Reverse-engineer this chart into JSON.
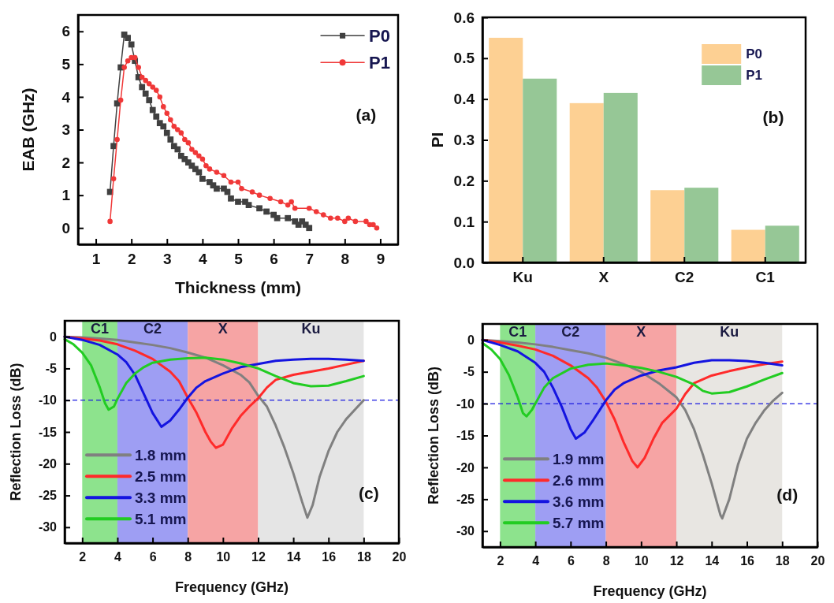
{
  "chart_data": [
    {
      "type": "line",
      "xlabel": "Thickness (mm)",
      "ylabel": "EAB (GHz)",
      "xlim": [
        0.5,
        9.5
      ],
      "ylim": [
        -0.5,
        6.5
      ],
      "xticks": [
        1,
        2,
        3,
        4,
        5,
        6,
        7,
        8,
        9
      ],
      "yticks": [
        0,
        1,
        2,
        3,
        4,
        5,
        6
      ],
      "legend": "top right",
      "annotations": [
        "(a)"
      ],
      "series": [
        {
          "name": "P0",
          "color": "#404040",
          "marker": "square",
          "x": [
            1.4,
            1.5,
            1.6,
            1.7,
            1.8,
            1.9,
            2.0,
            2.1,
            2.2,
            2.3,
            2.4,
            2.5,
            2.6,
            2.7,
            2.8,
            2.9,
            3.0,
            3.1,
            3.2,
            3.3,
            3.4,
            3.5,
            3.6,
            3.7,
            3.8,
            3.9,
            4.0,
            4.2,
            4.3,
            4.4,
            4.6,
            4.7,
            4.8,
            5.0,
            5.2,
            5.3,
            5.6,
            5.8,
            6.0,
            6.1,
            6.4,
            6.6,
            6.7,
            6.8,
            6.9,
            7.0
          ],
          "values": [
            1.1,
            2.5,
            3.8,
            4.9,
            5.9,
            5.8,
            5.6,
            5.1,
            4.6,
            4.3,
            4.1,
            3.9,
            3.6,
            3.4,
            3.2,
            3.1,
            2.9,
            2.7,
            2.5,
            2.4,
            2.2,
            2.1,
            2.0,
            1.9,
            1.8,
            1.7,
            1.5,
            1.4,
            1.3,
            1.2,
            1.2,
            1.1,
            0.9,
            0.8,
            0.8,
            0.7,
            0.6,
            0.5,
            0.4,
            0.3,
            0.3,
            0.2,
            0.1,
            0.2,
            0.1,
            0.0
          ]
        },
        {
          "name": "P1",
          "color": "#f03838",
          "marker": "circle",
          "x": [
            1.4,
            1.5,
            1.6,
            1.7,
            1.8,
            1.9,
            2.0,
            2.1,
            2.2,
            2.3,
            2.4,
            2.5,
            2.6,
            2.7,
            2.8,
            2.9,
            3.0,
            3.1,
            3.2,
            3.3,
            3.4,
            3.5,
            3.6,
            3.7,
            3.8,
            3.9,
            4.0,
            4.1,
            4.2,
            4.4,
            4.6,
            4.8,
            5.0,
            5.1,
            5.4,
            5.6,
            5.9,
            6.2,
            6.4,
            6.5,
            6.6,
            7.0,
            7.2,
            7.4,
            7.6,
            7.8,
            8.0,
            8.1,
            8.3,
            8.6,
            8.7,
            8.8,
            8.9
          ],
          "values": [
            0.2,
            1.5,
            2.7,
            3.9,
            4.9,
            5.1,
            5.2,
            5.2,
            4.9,
            4.6,
            4.5,
            4.4,
            4.3,
            4.2,
            4.0,
            3.7,
            3.5,
            3.3,
            3.1,
            3.0,
            2.9,
            2.7,
            2.6,
            2.4,
            2.3,
            2.2,
            2.1,
            1.9,
            1.8,
            1.7,
            1.6,
            1.4,
            1.4,
            1.2,
            1.1,
            1.0,
            0.9,
            0.8,
            0.7,
            0.8,
            0.6,
            0.6,
            0.5,
            0.4,
            0.3,
            0.3,
            0.2,
            0.3,
            0.2,
            0.2,
            0.1,
            0.1,
            0.0
          ]
        }
      ]
    },
    {
      "type": "bar",
      "ylabel": "PI",
      "categories": [
        "Ku",
        "X",
        "C2",
        "C1"
      ],
      "ylim": [
        0,
        0.6
      ],
      "yticks": [
        {
          "value": 0,
          "label": "0.0"
        },
        {
          "value": 0.1,
          "label": "0.1"
        },
        {
          "value": 0.2,
          "label": "0.2"
        },
        {
          "value": 0.3,
          "label": "0.3"
        },
        {
          "value": 0.4,
          "label": "0.4"
        },
        {
          "value": 0.5,
          "label": "0.5"
        },
        {
          "value": 0.6,
          "label": "0.6"
        }
      ],
      "legend": "top right",
      "annotations": [
        "(b)"
      ],
      "series": [
        {
          "name": "P0",
          "color": "#fdd093",
          "values": [
            0.55,
            0.39,
            0.177,
            0.08
          ]
        },
        {
          "name": "P1",
          "color": "#96c796",
          "values": [
            0.45,
            0.415,
            0.183,
            0.09
          ]
        }
      ]
    },
    {
      "type": "line",
      "xlabel": "Frequency (GHz)",
      "ylabel": "Reflection Loss (dB)",
      "xlim": [
        1,
        20
      ],
      "ylim": [
        -32.5,
        2.5
      ],
      "xticks": [
        2,
        4,
        6,
        8,
        10,
        12,
        14,
        16,
        18,
        20
      ],
      "yticks": [
        0,
        -5,
        -10,
        -15,
        -20,
        -25,
        -30
      ],
      "legend": "bottom left",
      "annotations": [
        "(c)"
      ],
      "bands": [
        {
          "axis": "x",
          "from": 2,
          "to": 4,
          "label": "C1",
          "color": "#8de38d"
        },
        {
          "axis": "x",
          "from": 4,
          "to": 8,
          "label": "C2",
          "color": "#9e9ef3"
        },
        {
          "axis": "x",
          "from": 8,
          "to": 12,
          "label": "X",
          "color": "#f6a4a4"
        },
        {
          "axis": "x",
          "from": 12,
          "to": 18,
          "label": "Ku",
          "color": "#e5e5e5"
        }
      ],
      "ref_lines": [
        {
          "axis": "y",
          "value": -10,
          "color": "#1a1ae0",
          "line_style": "dashed"
        }
      ],
      "series": [
        {
          "name": "1.8 mm",
          "color": "#808080",
          "x": [
            1,
            2,
            3,
            4,
            5,
            6,
            7,
            8,
            9,
            10,
            11,
            11.5,
            12,
            12.5,
            13,
            13.5,
            14,
            14.5,
            14.8,
            15.1,
            15.5,
            16,
            16.5,
            17,
            17.5,
            18
          ],
          "values": [
            0,
            -0.1,
            -0.3,
            -0.5,
            -0.9,
            -1.3,
            -1.8,
            -2.5,
            -3.3,
            -4.5,
            -6.0,
            -7.2,
            -9.3,
            -11,
            -14,
            -17.5,
            -21.5,
            -26,
            -28.5,
            -26.5,
            -22,
            -18,
            -15,
            -13,
            -11.5,
            -10
          ]
        },
        {
          "name": "2.5 mm",
          "color": "#ff2a2a",
          "x": [
            1,
            2,
            3,
            4,
            5,
            6,
            7,
            7.5,
            8,
            8.5,
            9,
            9.3,
            9.6,
            10,
            10.5,
            11,
            11.5,
            12,
            12.5,
            13,
            14,
            15,
            16,
            17,
            18
          ],
          "values": [
            0,
            -0.3,
            -0.6,
            -1.2,
            -2.2,
            -3.5,
            -5.5,
            -7,
            -9.6,
            -12,
            -15,
            -16.5,
            -17.5,
            -17,
            -14.5,
            -12.5,
            -11,
            -9.7,
            -8,
            -6.8,
            -6.0,
            -5.5,
            -5,
            -4.4,
            -3.8
          ]
        },
        {
          "name": "3.3 mm",
          "color": "#1414e0",
          "x": [
            1,
            2,
            3,
            4,
            4.5,
            5,
            5.5,
            6,
            6.5,
            7,
            7.5,
            8,
            8.5,
            9,
            10,
            11,
            12,
            13,
            14,
            15,
            16,
            17,
            18
          ],
          "values": [
            0,
            -0.5,
            -1.3,
            -2.8,
            -4,
            -6,
            -9,
            -12,
            -14.2,
            -13.2,
            -11.5,
            -9.6,
            -8,
            -7,
            -5.8,
            -4.8,
            -4.3,
            -3.8,
            -3.6,
            -3.5,
            -3.5,
            -3.6,
            -3.8
          ]
        },
        {
          "name": "5.1 mm",
          "color": "#22cc22",
          "x": [
            1,
            1.5,
            2,
            2.5,
            3,
            3.3,
            3.5,
            3.8,
            4,
            4.5,
            5,
            5.5,
            6,
            7,
            8,
            9,
            10,
            11,
            12,
            13,
            14,
            15,
            16,
            17,
            18
          ],
          "values": [
            -0.4,
            -1.2,
            -2.5,
            -4.5,
            -8,
            -10.5,
            -11.5,
            -11,
            -9.8,
            -7.3,
            -5.8,
            -4.8,
            -4.1,
            -3.6,
            -3.4,
            -3.3,
            -3.6,
            -4.2,
            -5,
            -6.2,
            -7.3,
            -7.8,
            -7.7,
            -7.0,
            -6.2
          ]
        }
      ]
    },
    {
      "type": "line",
      "xlabel": "Frequency (GHz)",
      "ylabel": "Reflection Loss (dB)",
      "xlim": [
        1,
        20
      ],
      "ylim": [
        -32.5,
        2.5
      ],
      "xticks": [
        2,
        4,
        6,
        8,
        10,
        12,
        14,
        16,
        18,
        20
      ],
      "yticks": [
        0,
        -5,
        -10,
        -15,
        -20,
        -25,
        -30
      ],
      "legend": "bottom left",
      "annotations": [
        "(d)"
      ],
      "bands": [
        {
          "axis": "x",
          "from": 2,
          "to": 4,
          "label": "C1",
          "color": "#8de38d"
        },
        {
          "axis": "x",
          "from": 4,
          "to": 8,
          "label": "C2",
          "color": "#9e9ef3"
        },
        {
          "axis": "x",
          "from": 8,
          "to": 12,
          "label": "X",
          "color": "#f6a4a4"
        },
        {
          "axis": "x",
          "from": 12,
          "to": 18,
          "label": "Ku",
          "color": "#e8e6e2"
        }
      ],
      "ref_lines": [
        {
          "axis": "y",
          "value": -10,
          "color": "#1a1ae0",
          "line_style": "dashed"
        }
      ],
      "series": [
        {
          "name": "1.9 mm",
          "color": "#808080",
          "x": [
            1,
            2,
            3,
            4,
            5,
            6,
            7,
            8,
            9,
            10,
            11,
            12,
            12.5,
            13,
            13.5,
            14,
            14.5,
            14.6,
            15,
            15.5,
            16,
            16.5,
            17,
            17.5,
            18
          ],
          "values": [
            0,
            -0.2,
            -0.4,
            -0.7,
            -1.1,
            -1.6,
            -2.1,
            -2.8,
            -3.8,
            -5.0,
            -6.8,
            -9.0,
            -11,
            -14,
            -18,
            -22.5,
            -27.5,
            -28,
            -25,
            -19.5,
            -15.5,
            -13,
            -11,
            -9.5,
            -8.3
          ]
        },
        {
          "name": "2.6 mm",
          "color": "#ff2a2a",
          "x": [
            1,
            2,
            3,
            4,
            5,
            6,
            7,
            7.5,
            8,
            8.5,
            9,
            9.5,
            9.8,
            10.2,
            10.7,
            11.2,
            12,
            12.5,
            13,
            14,
            15,
            16,
            17,
            18
          ],
          "values": [
            0,
            -0.4,
            -0.9,
            -1.5,
            -2.5,
            -4,
            -6,
            -7.5,
            -9.7,
            -12.5,
            -16,
            -19,
            -20,
            -18.5,
            -15.5,
            -13,
            -10.8,
            -8.5,
            -6.8,
            -5.6,
            -4.9,
            -4.3,
            -3.8,
            -3.4
          ]
        },
        {
          "name": "3.6 mm",
          "color": "#1414e0",
          "x": [
            1,
            2,
            3,
            4,
            4.5,
            5,
            5.5,
            6,
            6.3,
            6.8,
            7.3,
            8,
            8.5,
            9,
            10,
            11,
            12,
            13,
            14,
            15,
            16,
            17,
            18
          ],
          "values": [
            0,
            -0.8,
            -1.8,
            -3.6,
            -5,
            -7.5,
            -10.5,
            -14,
            -15.5,
            -14.5,
            -12.5,
            -9.5,
            -7.8,
            -6.8,
            -5.6,
            -4.8,
            -4.3,
            -3.6,
            -3.2,
            -3.2,
            -3.3,
            -3.6,
            -4.0
          ]
        },
        {
          "name": "5.7 mm",
          "color": "#22cc22",
          "x": [
            1,
            1.5,
            2,
            2.5,
            3,
            3.3,
            3.5,
            3.8,
            4,
            4.5,
            5,
            6,
            7,
            8,
            9,
            10,
            11,
            12,
            13,
            13.5,
            14,
            15,
            16,
            17,
            18
          ],
          "values": [
            -0.5,
            -1.5,
            -3,
            -5.5,
            -9,
            -11.5,
            -12,
            -11,
            -10,
            -7.5,
            -6,
            -4.5,
            -3.9,
            -3.7,
            -4.0,
            -4.4,
            -5.0,
            -5.8,
            -7,
            -8,
            -8.4,
            -8.2,
            -7.3,
            -6.2,
            -5.2
          ]
        }
      ]
    }
  ]
}
